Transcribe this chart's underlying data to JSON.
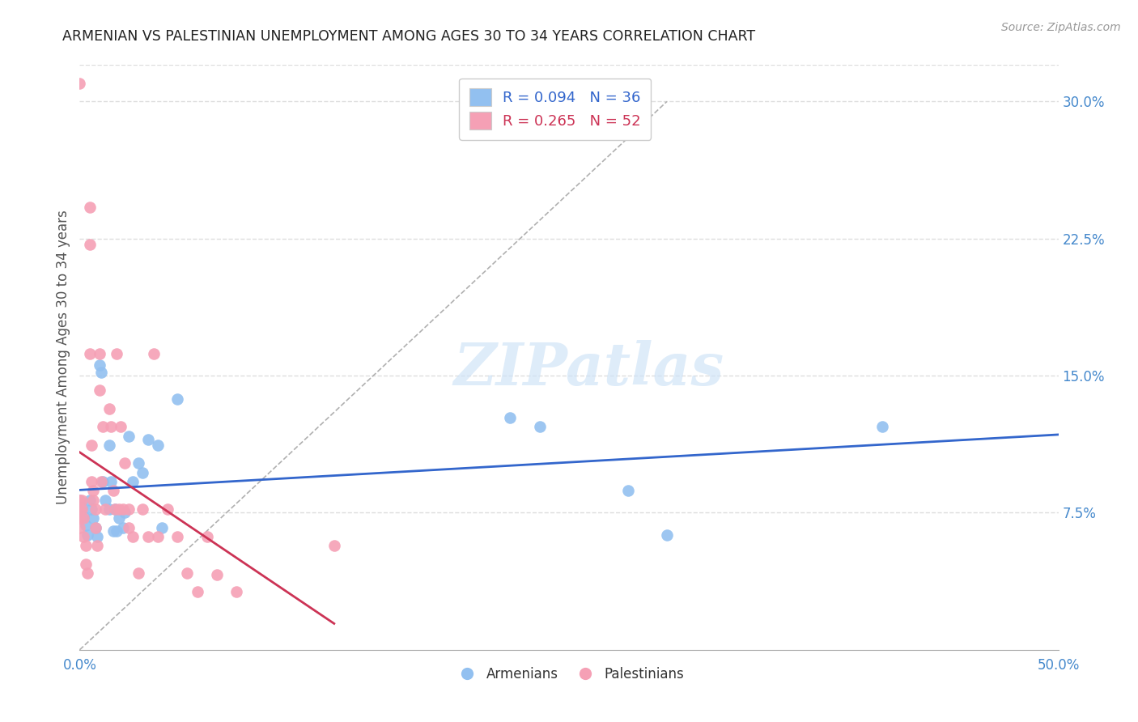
{
  "title": "ARMENIAN VS PALESTINIAN UNEMPLOYMENT AMONG AGES 30 TO 34 YEARS CORRELATION CHART",
  "source": "Source: ZipAtlas.com",
  "ylabel": "Unemployment Among Ages 30 to 34 years",
  "xlim": [
    0.0,
    0.5
  ],
  "ylim": [
    0.0,
    0.32
  ],
  "yticks_right": [
    0.075,
    0.15,
    0.225,
    0.3
  ],
  "ytick_right_labels": [
    "7.5%",
    "15.0%",
    "22.5%",
    "30.0%"
  ],
  "armenian_R": 0.094,
  "armenian_N": 36,
  "palestinian_R": 0.265,
  "palestinian_N": 52,
  "armenian_color": "#92c0f0",
  "palestinian_color": "#f5a0b5",
  "armenian_line_color": "#3366cc",
  "palestinian_line_color": "#cc3355",
  "diagonal_color": "#b0b0b0",
  "armenian_x": [
    0.0,
    0.001,
    0.002,
    0.003,
    0.004,
    0.005,
    0.006,
    0.007,
    0.008,
    0.009,
    0.01,
    0.011,
    0.012,
    0.013,
    0.015,
    0.016,
    0.018,
    0.02,
    0.022,
    0.025,
    0.027,
    0.03,
    0.032,
    0.035,
    0.04,
    0.042,
    0.05,
    0.22,
    0.235,
    0.28,
    0.3,
    0.41,
    0.015,
    0.017,
    0.019,
    0.023
  ],
  "armenian_y": [
    0.082,
    0.078,
    0.073,
    0.068,
    0.063,
    0.082,
    0.077,
    0.072,
    0.067,
    0.062,
    0.156,
    0.152,
    0.092,
    0.082,
    0.112,
    0.092,
    0.077,
    0.072,
    0.067,
    0.117,
    0.092,
    0.102,
    0.097,
    0.115,
    0.112,
    0.067,
    0.137,
    0.127,
    0.122,
    0.087,
    0.063,
    0.122,
    0.077,
    0.065,
    0.065,
    0.075
  ],
  "palestinian_x": [
    0.0,
    0.0,
    0.0,
    0.0,
    0.0,
    0.001,
    0.001,
    0.002,
    0.002,
    0.003,
    0.003,
    0.004,
    0.005,
    0.005,
    0.005,
    0.006,
    0.006,
    0.007,
    0.007,
    0.008,
    0.008,
    0.009,
    0.01,
    0.01,
    0.011,
    0.012,
    0.013,
    0.015,
    0.016,
    0.017,
    0.018,
    0.019,
    0.02,
    0.021,
    0.022,
    0.023,
    0.025,
    0.025,
    0.027,
    0.03,
    0.032,
    0.035,
    0.038,
    0.04,
    0.045,
    0.05,
    0.055,
    0.06,
    0.065,
    0.07,
    0.08,
    0.13
  ],
  "palestinian_y": [
    0.31,
    0.082,
    0.077,
    0.072,
    0.067,
    0.082,
    0.077,
    0.072,
    0.062,
    0.057,
    0.047,
    0.042,
    0.242,
    0.222,
    0.162,
    0.112,
    0.092,
    0.087,
    0.082,
    0.077,
    0.067,
    0.057,
    0.162,
    0.142,
    0.092,
    0.122,
    0.077,
    0.132,
    0.122,
    0.087,
    0.077,
    0.162,
    0.077,
    0.122,
    0.077,
    0.102,
    0.067,
    0.077,
    0.062,
    0.042,
    0.077,
    0.062,
    0.162,
    0.062,
    0.077,
    0.062,
    0.042,
    0.032,
    0.062,
    0.041,
    0.032,
    0.057
  ],
  "background_color": "#ffffff",
  "grid_color": "#dddddd",
  "watermark": "ZIPatlas"
}
